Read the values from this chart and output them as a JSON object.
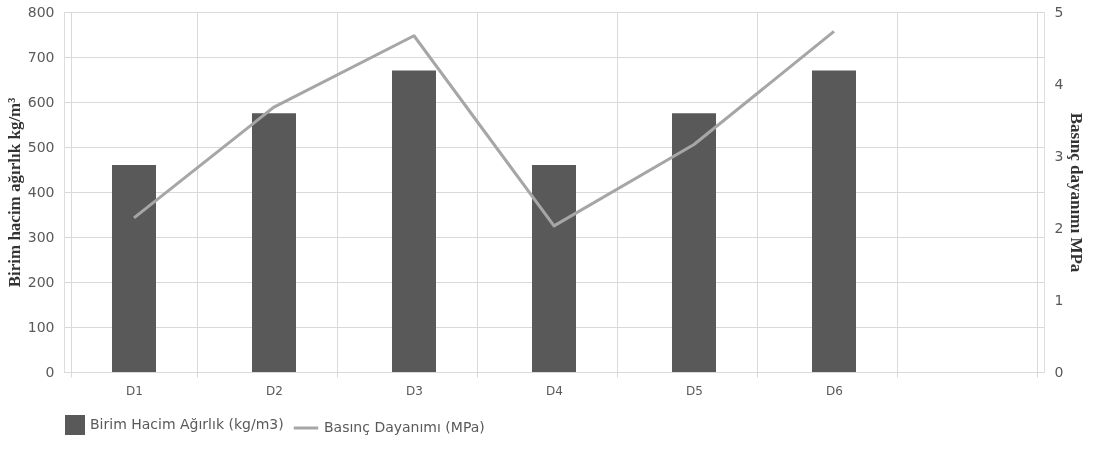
{
  "chart_data": {
    "type": "bar",
    "categories": [
      "D1",
      "D2",
      "D3",
      "D4",
      "D5",
      "D6",
      null
    ],
    "series": [
      {
        "name": "Birim Hacim Ağırlık (kg/m3)",
        "color": "#595959",
        "values": [
          460,
          575,
          670,
          460,
          575,
          670,
          null
        ]
      },
      {
        "name": "Basınç Dayanımı (MPa)",
        "type": "line",
        "axis": "y2",
        "color": "#a6a6a6",
        "values": [
          2.14,
          3.68,
          4.67,
          2.03,
          3.16,
          4.73,
          null
        ]
      }
    ],
    "ylabel": "Birim hacim ağırlık kg/m³",
    "y2label": "Basınç dayanımı MPa",
    "ylim": [
      0,
      800
    ],
    "yticks": [
      0,
      100,
      200,
      300,
      400,
      500,
      600,
      700,
      800
    ],
    "y2lim": [
      0,
      5
    ],
    "y2ticks": [
      0,
      1,
      2,
      3,
      4,
      5
    ],
    "grid": true,
    "legend": "bottom"
  }
}
